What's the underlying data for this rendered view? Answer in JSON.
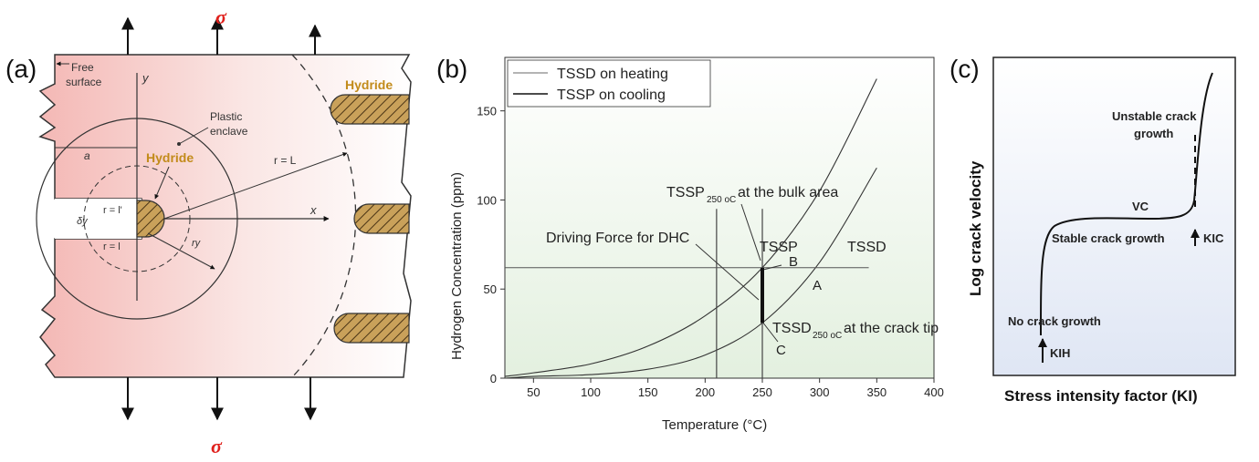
{
  "panel_a": {
    "label": "(a)",
    "sigma_top": "σ",
    "sigma_bottom": "σ",
    "free_surface_1": "Free",
    "free_surface_2": "surface",
    "y_axis": "y",
    "x_axis": "x",
    "a_label": "a",
    "plastic_enclave_1": "Plastic",
    "plastic_enclave_2": "enclave",
    "hydride_center": "Hydride",
    "hydride_right": "Hydride",
    "r_L": "r = L",
    "r_l_prime": "r = l'",
    "r_l": "r = l",
    "delta_y": "δy",
    "r_y": "ry",
    "colors": {
      "pink": "#f6c9c7",
      "hydride": "#c9a15a",
      "accent": "#e0201c"
    }
  },
  "panel_b": {
    "label": "(b)",
    "chart_data": {
      "type": "line",
      "xlabel": "Temperature (°C)",
      "ylabel": "Hydrogen Concentration (ppm)",
      "x_ticks": [
        "50",
        "100",
        "150",
        "200",
        "250",
        "300",
        "350",
        "400"
      ],
      "y_ticks": [
        "0",
        "50",
        "100",
        "150"
      ],
      "xlim": [
        25,
        400
      ],
      "ylim": [
        0,
        180
      ],
      "legend": [
        {
          "name": "TSSD on heating"
        },
        {
          "name": "TSSP on cooling"
        }
      ],
      "series": [
        {
          "name": "TSSP on cooling",
          "x": [
            25,
            50,
            100,
            150,
            200,
            250,
            300,
            350
          ],
          "y": [
            1,
            3,
            8,
            18,
            35,
            62,
            105,
            168
          ]
        },
        {
          "name": "TSSD on heating",
          "x": [
            25,
            50,
            100,
            150,
            200,
            250,
            300,
            350
          ],
          "y": [
            0,
            1,
            2,
            5,
            13,
            31,
            65,
            118
          ]
        }
      ],
      "annotations": {
        "tssp_bulk_main": "TSSP",
        "tssp_bulk_sub": "250 oC",
        "tssp_bulk_rest": " at the bulk area",
        "driving_force": "Driving Force for DHC",
        "tssp": "TSSP",
        "tssd": "TSSD",
        "point_a": "A",
        "point_b": "B",
        "point_c": "C",
        "tssd_tip_main": "TSSD",
        "tssd_tip_sub": "250 oC",
        "tssd_tip_rest": " at the crack tip"
      },
      "vlines": [
        210,
        250
      ],
      "hline": 62
    }
  },
  "panel_c": {
    "label": "(c)",
    "ylabel": "Log crack velocity",
    "xlabel": "Stress intensity factor (KI)",
    "unstable_1": "Unstable crack",
    "unstable_2": "growth",
    "vc": "VC",
    "stable": "Stable crack growth",
    "kic": "KIC",
    "no_growth": "No crack growth",
    "kih": "KIH"
  }
}
